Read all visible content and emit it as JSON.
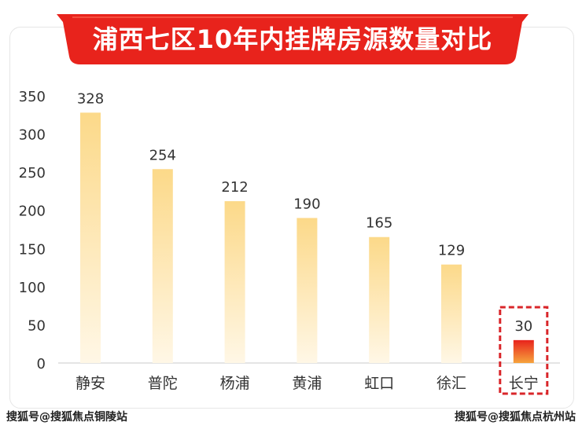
{
  "chart_data": {
    "type": "bar",
    "title": "浦西七区10年内挂牌房源数量对比",
    "categories": [
      "静安",
      "普陀",
      "杨浦",
      "黄浦",
      "虹口",
      "徐汇",
      "长宁"
    ],
    "values": [
      328,
      254,
      212,
      190,
      165,
      129,
      30
    ],
    "ylim": [
      0,
      350
    ],
    "yticks": [
      "0",
      "50",
      "100",
      "150",
      "200",
      "250",
      "300",
      "350"
    ],
    "grid": false,
    "highlight_category": "长宁"
  },
  "colors": {
    "banner": "#e8231c",
    "bar_top": "#fcd989",
    "bar_bottom": "#fff7e6",
    "highlight_top": "#e8231c",
    "highlight_bottom": "#f6a33c",
    "highlight_border": "#d9262a"
  },
  "watermarks": {
    "left": "搜狐号@搜狐焦点铜陵站",
    "right": "搜狐号@搜狐焦点杭州站"
  }
}
